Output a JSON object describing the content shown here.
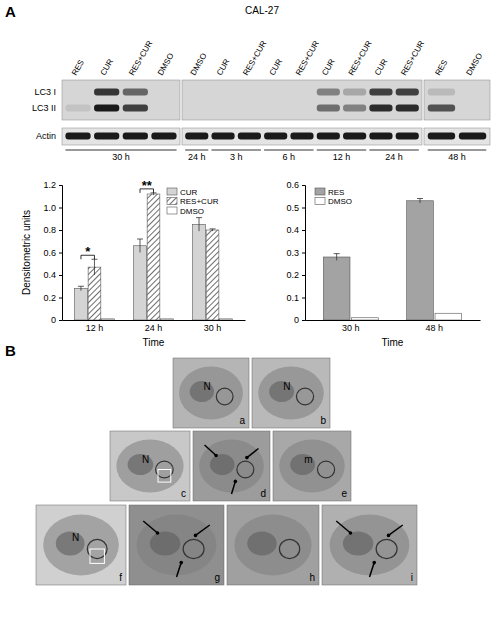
{
  "figure": {
    "panel_labels": [
      "A",
      "B"
    ]
  },
  "blot": {
    "title": "CAL-27",
    "rows": [
      "LC3 I",
      "LC3 II",
      "Actin"
    ],
    "panels": [
      {
        "lanes": [
          "RES",
          "CUR",
          "RES+CUR",
          "DMSO"
        ],
        "times": [
          {
            "label": "30 h",
            "span": 4
          }
        ],
        "bands": [
          [
            0,
            0.1,
            1
          ],
          [
            0.85,
            1,
            1
          ],
          [
            0.6,
            0.8,
            1
          ],
          [
            0,
            0,
            1
          ]
        ]
      },
      {
        "lanes": [
          "DMSO",
          "CUR",
          "RES+CUR",
          "CUR",
          "RES+CUR",
          "CUR",
          "RES+CUR",
          "CUR",
          "RES+CUR"
        ],
        "times": [
          {
            "label": "24 h",
            "span": 1
          },
          {
            "label": "3 h",
            "span": 2
          },
          {
            "label": "6 h",
            "span": 2
          },
          {
            "label": "12 h",
            "span": 2
          },
          {
            "label": "24 h",
            "span": 2
          }
        ],
        "bands": [
          [
            0,
            0,
            1
          ],
          [
            0,
            0,
            1
          ],
          [
            0,
            0,
            1
          ],
          [
            0,
            0,
            1
          ],
          [
            0,
            0,
            1
          ],
          [
            0.45,
            0.55,
            1
          ],
          [
            0.25,
            0.45,
            1
          ],
          [
            0.8,
            0.9,
            1
          ],
          [
            0.8,
            0.9,
            1
          ]
        ]
      },
      {
        "lanes": [
          "RES",
          "DMSO"
        ],
        "times": [
          {
            "label": "48 h",
            "span": 2
          }
        ],
        "bands": [
          [
            0.15,
            0.7,
            1
          ],
          [
            0,
            0,
            1
          ]
        ]
      }
    ]
  },
  "chart_data": [
    {
      "type": "bar",
      "categories": [
        "12 h",
        "24 h",
        "30 h"
      ],
      "series": [
        {
          "name": "CUR",
          "color": "#d4d4d4",
          "values": [
            0.28,
            0.66,
            0.85
          ],
          "errors": [
            0.02,
            0.06,
            0.06
          ]
        },
        {
          "name": "RES+CUR",
          "color": "#6e6e6e",
          "marker": "hatch",
          "values": [
            0.47,
            1.12,
            0.8
          ],
          "errors": [
            0.07,
            0.01,
            0.01
          ]
        },
        {
          "name": "DMSO",
          "color": "#ffffff",
          "values": [
            0.01,
            0.01,
            0.01
          ]
        }
      ],
      "xlabel": "Time",
      "ylabel": "Densitometric units",
      "ylim": [
        0,
        1.2
      ],
      "yticks": [
        0,
        0.2,
        0.4,
        0.6,
        0.8,
        {
          "value": 1,
          "label": "1.0"
        },
        1.2
      ],
      "legend": "upper right",
      "annotations": [
        {
          "text": "*",
          "x": "12 h"
        },
        {
          "text": "**",
          "x": "24 h"
        }
      ]
    },
    {
      "type": "bar",
      "categories": [
        "30 h",
        "48 h"
      ],
      "series": [
        {
          "name": "RES",
          "color": "#a3a3a3",
          "values": [
            0.28,
            0.53
          ],
          "errors": [
            0.015,
            0.01
          ]
        },
        {
          "name": "DMSO",
          "color": "#ffffff",
          "values": [
            0.01,
            0.03
          ]
        }
      ],
      "xlabel": "Time",
      "ylim": [
        0,
        0.6
      ],
      "yticks": [
        0,
        0.1,
        0.2,
        0.3,
        0.4,
        0.5,
        0.6
      ],
      "legend": "upper left"
    }
  ],
  "micrographs": [
    {
      "letter": "a",
      "labels": [
        "N"
      ]
    },
    {
      "letter": "b",
      "labels": [
        "N"
      ]
    },
    {
      "letter": "c",
      "labels": [
        "N"
      ]
    },
    {
      "letter": "d",
      "labels": []
    },
    {
      "letter": "e",
      "labels": [
        "m"
      ]
    },
    {
      "letter": "f",
      "labels": [
        "N"
      ]
    },
    {
      "letter": "g",
      "labels": []
    },
    {
      "letter": "h",
      "labels": []
    },
    {
      "letter": "i",
      "labels": []
    }
  ]
}
